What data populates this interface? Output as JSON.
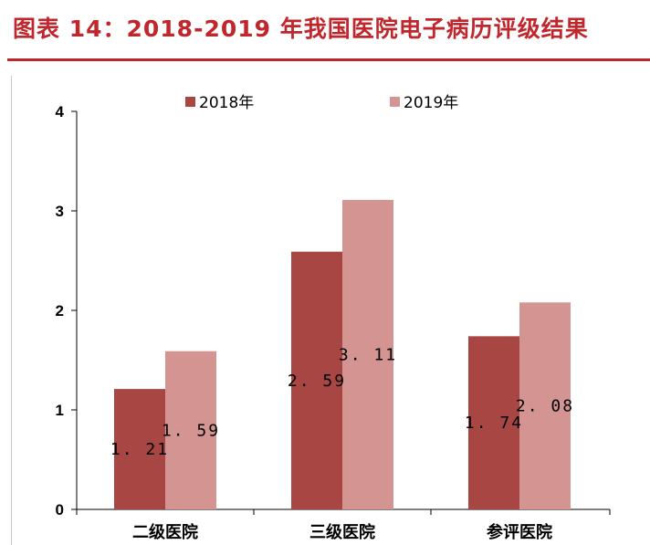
{
  "header": {
    "title": "图表 14：2018-2019 年我国医院电子病历评级结果"
  },
  "colors": {
    "accent": "#c0272d",
    "series_2018": "#a84644",
    "series_2019": "#d39492"
  },
  "chart_data": {
    "type": "bar",
    "title": "",
    "xlabel": "",
    "ylabel": "",
    "categories": [
      "二级医院",
      "三级医院",
      "参评医院"
    ],
    "series": [
      {
        "name": "2018年",
        "values": [
          1.21,
          2.59,
          1.74
        ]
      },
      {
        "name": "2019年",
        "values": [
          1.59,
          3.11,
          2.08
        ]
      }
    ],
    "data_labels": [
      [
        "1. 21",
        "2. 59",
        "1. 74"
      ],
      [
        "1. 59",
        "3. 11",
        "2. 08"
      ]
    ],
    "ylim": [
      0,
      4
    ],
    "yticks": [
      "0",
      "1",
      "2",
      "3",
      "4"
    ],
    "grid": false,
    "legend": "top-center"
  }
}
